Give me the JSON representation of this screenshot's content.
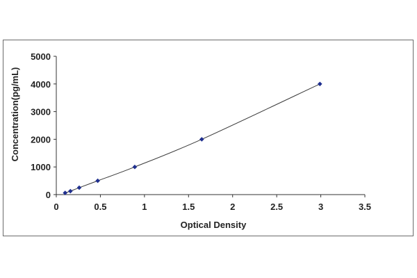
{
  "chart_data": {
    "type": "scatter",
    "title": "",
    "xlabel": "Optical Density",
    "ylabel": "Concentration(pg/mL)",
    "xlim": [
      0,
      3.5
    ],
    "ylim": [
      0,
      5000
    ],
    "x_ticks": [
      "0",
      "0.5",
      "1",
      "1.5",
      "2",
      "2.5",
      "3",
      "3.5"
    ],
    "y_ticks": [
      "0",
      "1000",
      "2000",
      "3000",
      "4000",
      "5000"
    ],
    "grid": false,
    "legend": "none",
    "series": [
      {
        "x": [
          0.1,
          0.16,
          0.26,
          0.47,
          0.89,
          1.65,
          2.99
        ],
        "y": [
          62.5,
          125,
          250,
          500,
          1000,
          2000,
          4000
        ],
        "marker": "diamond",
        "line": "fitted-curve",
        "color": "#1f2f8f"
      }
    ],
    "fit_line_color": "#3a3a3a"
  }
}
